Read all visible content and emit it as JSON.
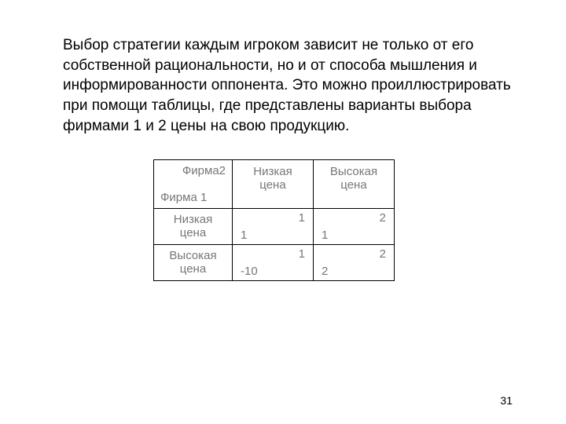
{
  "paragraph": "Выбор стратегии каждым игроком зависит не только от его собственной рациональности, но и от способа мышления и информированности оппонента. Это можно проиллюстрировать при помощи таблицы, где представлены варианты выбора фирмами 1 и 2 цены на свою продукцию.",
  "table": {
    "corner_top": "Фирма2",
    "corner_bottom": "Фирма 1",
    "col1": "Низкая цена",
    "col2": "Высокая цена",
    "row1": "Низкая цена",
    "row2": "Высокая цена",
    "cells": {
      "r1c1_top": "1",
      "r1c1_bottom": "1",
      "r1c2_top": "2",
      "r1c2_bottom": "1",
      "r2c1_top": "1",
      "r2c1_bottom": "-10",
      "r2c2_top": "2",
      "r2c2_bottom": "2"
    },
    "styling": {
      "border_color": "#000000",
      "text_color": "#777777",
      "font_size_table": 15,
      "font_size_paragraph": 19,
      "col_width_hdr": 100,
      "col_width_data": 103,
      "header_row_height": 62,
      "data_row_height": 46,
      "background_color": "#ffffff"
    }
  },
  "page_number": "31"
}
